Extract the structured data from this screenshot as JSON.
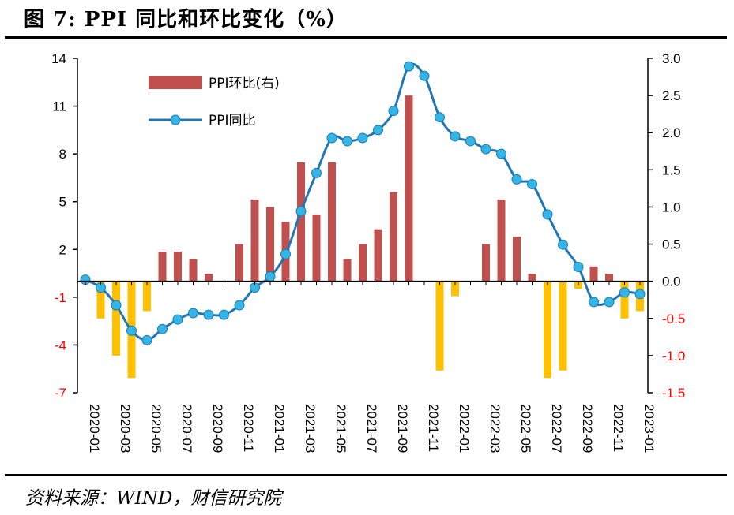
{
  "title": "图 7:  PPI 同比和环比变化（%）",
  "source": "资料来源：WIND，财信研究院",
  "colors": {
    "bar_positive": "#C0504D",
    "bar_negative": "#FFC000",
    "line": "#1F77B4",
    "marker": "#33B5E5",
    "negative_tick": "#FF0000"
  },
  "chart_data": {
    "type": "bar+line",
    "categories": [
      "2020-01",
      "2020-02",
      "2020-03",
      "2020-04",
      "2020-05",
      "2020-06",
      "2020-07",
      "2020-08",
      "2020-09",
      "2020-10",
      "2020-11",
      "2020-12",
      "2021-01",
      "2021-02",
      "2021-03",
      "2021-04",
      "2021-05",
      "2021-06",
      "2021-07",
      "2021-08",
      "2021-09",
      "2021-10",
      "2021-11",
      "2021-12",
      "2022-01",
      "2022-02",
      "2022-03",
      "2022-04",
      "2022-05",
      "2022-06",
      "2022-07",
      "2022-08",
      "2022-09",
      "2022-10",
      "2022-11",
      "2022-12",
      "2023-01"
    ],
    "x_tick_labels": [
      "2020-01",
      "2020-03",
      "2020-05",
      "2020-07",
      "2020-09",
      "2020-11",
      "2021-01",
      "2021-03",
      "2021-05",
      "2021-07",
      "2021-09",
      "2021-11",
      "2022-01",
      "2022-03",
      "2022-05",
      "2022-07",
      "2022-09",
      "2022-11",
      "2023-01"
    ],
    "series": [
      {
        "name": "PPI环比(右)",
        "type": "bar",
        "axis": "right",
        "values": [
          0.0,
          -0.5,
          -1.0,
          -1.3,
          -0.4,
          0.4,
          0.4,
          0.3,
          0.1,
          0.0,
          0.5,
          1.1,
          1.0,
          0.8,
          1.6,
          0.9,
          1.6,
          0.3,
          0.5,
          0.7,
          1.2,
          2.5,
          0.0,
          -1.2,
          -0.2,
          0.0,
          0.5,
          1.1,
          0.6,
          0.1,
          -1.3,
          -1.2,
          -0.1,
          0.2,
          0.1,
          -0.5,
          -0.4
        ]
      },
      {
        "name": "PPI同比",
        "type": "line",
        "axis": "left",
        "values": [
          0.1,
          -0.4,
          -1.5,
          -3.1,
          -3.7,
          -3.0,
          -2.4,
          -2.0,
          -2.1,
          -2.1,
          -1.5,
          -0.4,
          0.3,
          1.7,
          4.4,
          6.8,
          9.0,
          8.8,
          9.0,
          9.5,
          10.7,
          13.5,
          12.9,
          10.3,
          9.1,
          8.8,
          8.3,
          8.0,
          6.4,
          6.1,
          4.2,
          2.3,
          0.9,
          -1.3,
          -1.3,
          -0.7,
          -0.8
        ]
      }
    ],
    "y_left": {
      "ylim": [
        -7,
        14
      ],
      "ticks": [
        "14",
        "11",
        "8",
        "5",
        "2",
        "-1",
        "-4",
        "-7"
      ]
    },
    "y_right": {
      "ylim": [
        -1.5,
        3.0
      ],
      "ticks": [
        "3.0",
        "2.5",
        "2.0",
        "1.5",
        "1.0",
        "0.5",
        "0.0",
        "-0.5",
        "-1.0",
        "-1.5"
      ]
    },
    "legend_position": "top-left",
    "grid": false
  }
}
